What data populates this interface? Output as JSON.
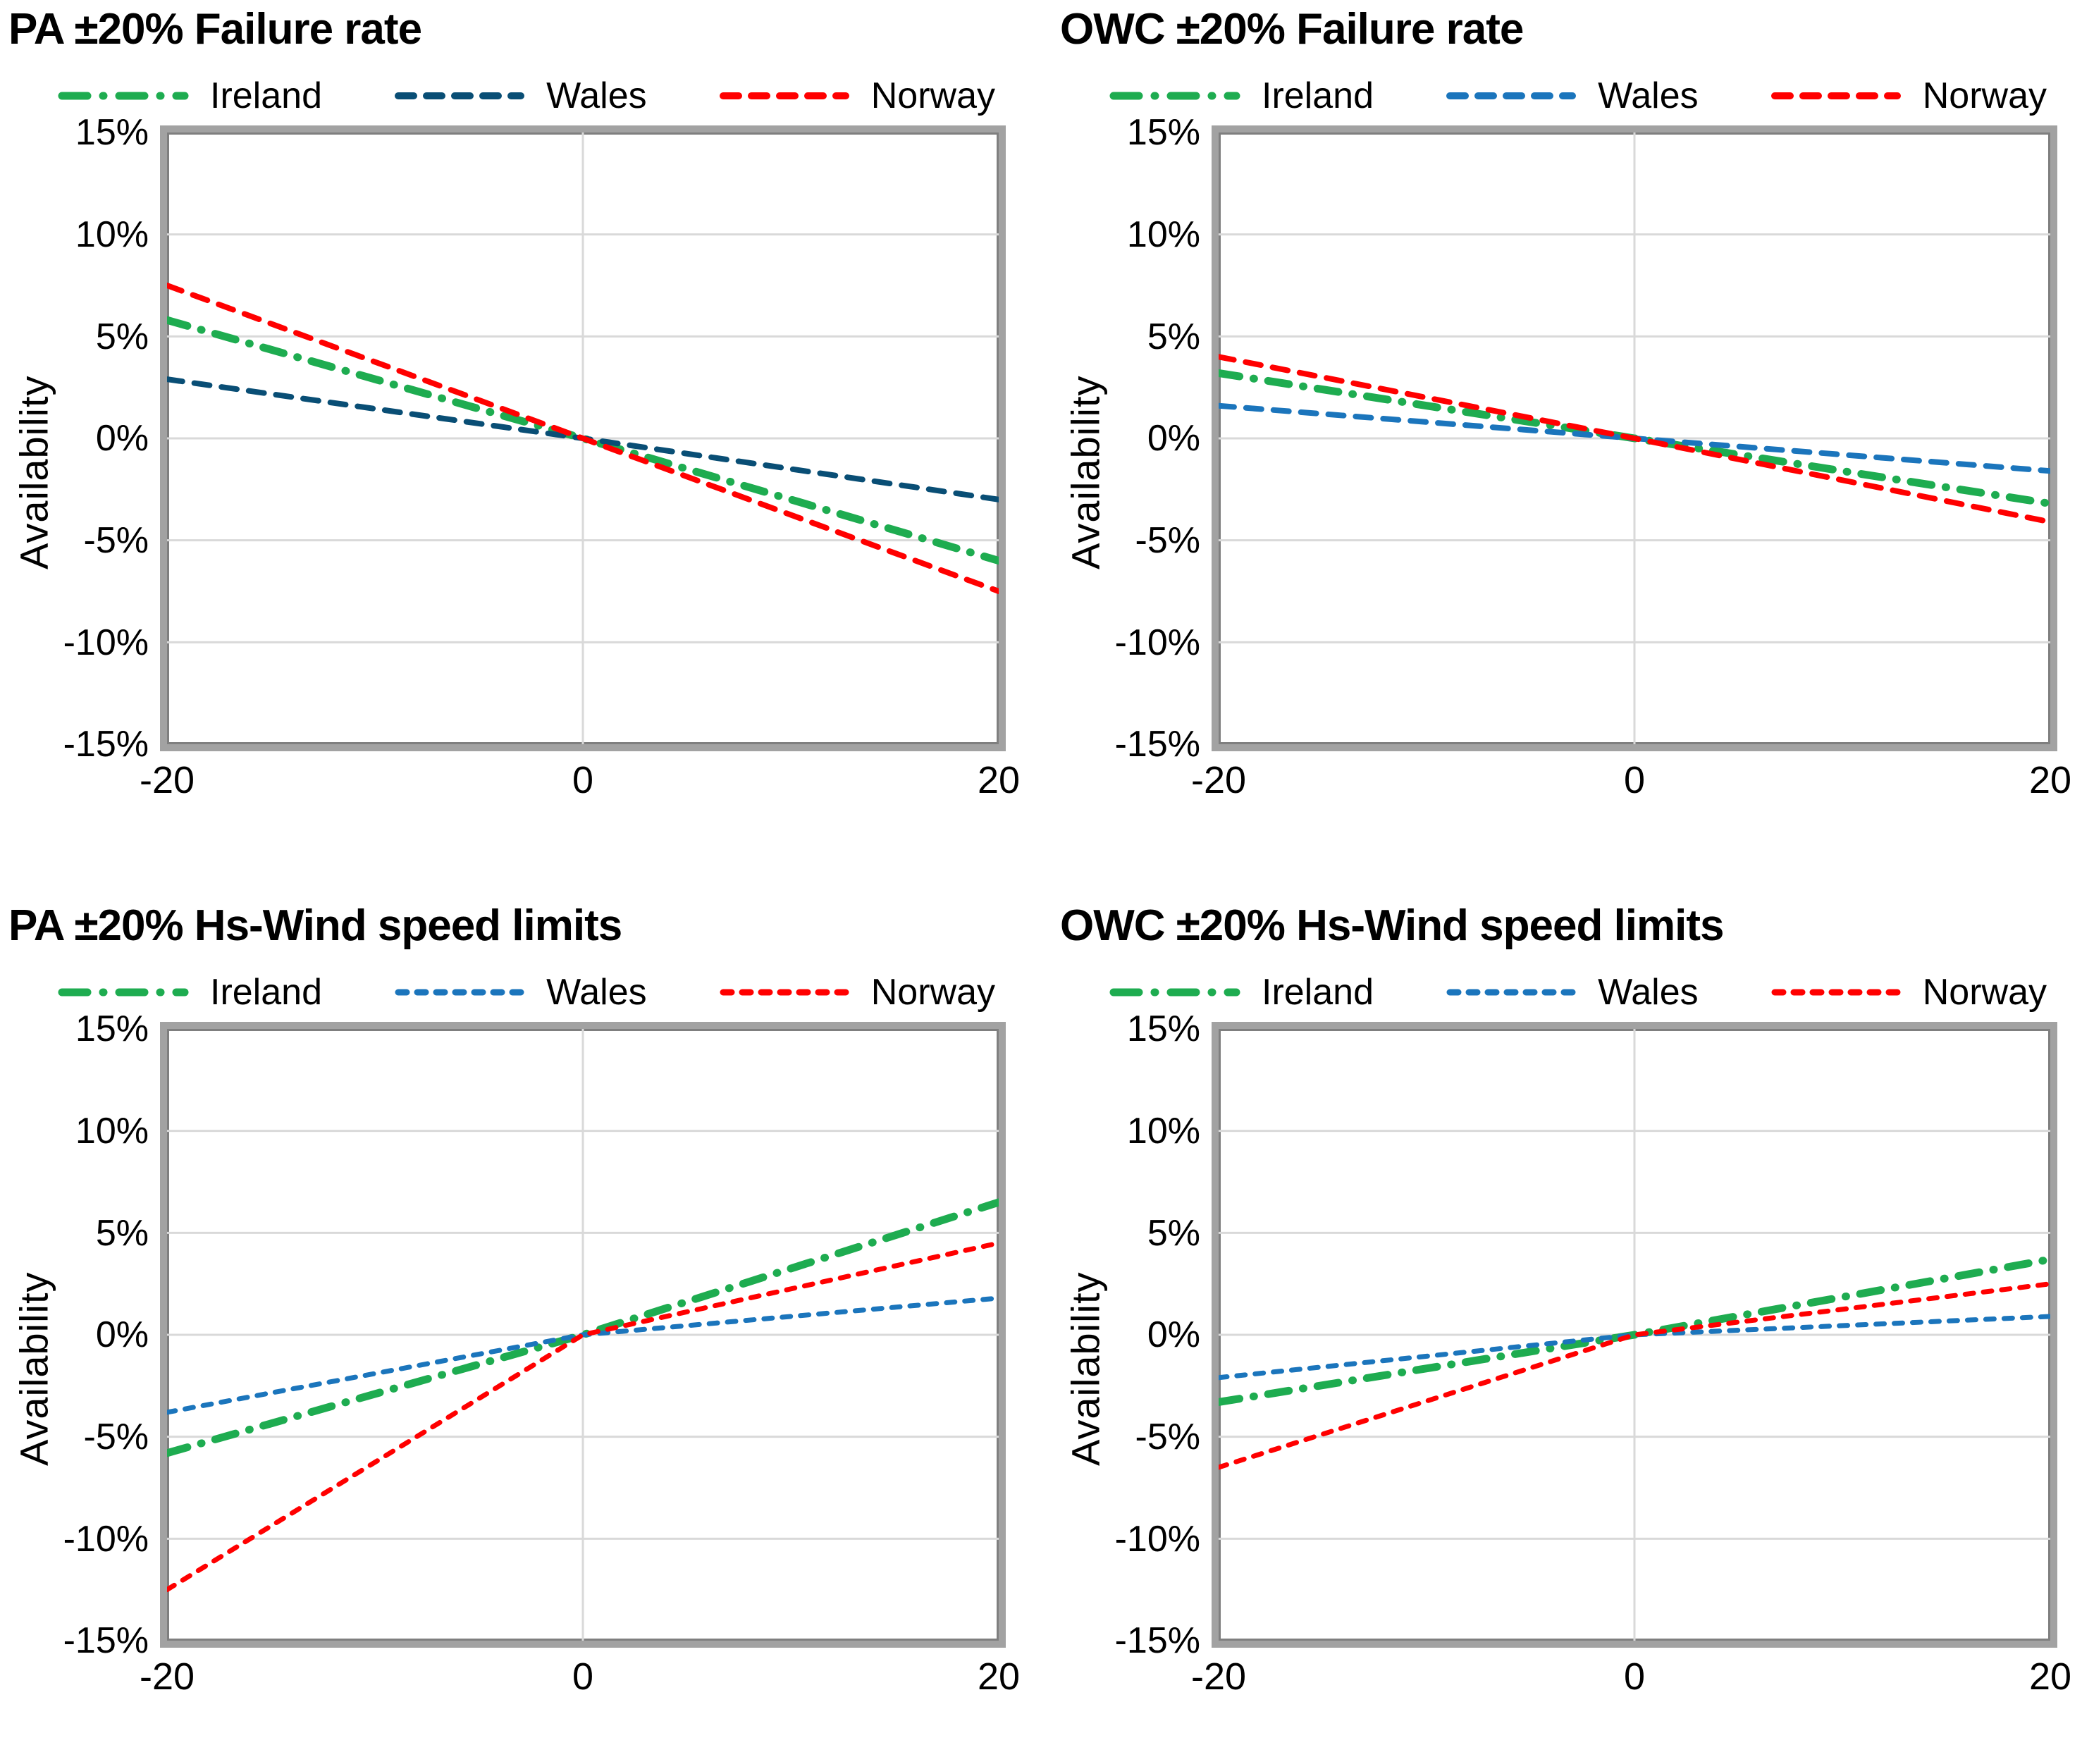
{
  "page": {
    "background": "#ffffff"
  },
  "chart_data": [
    {
      "type": "line",
      "title": "PA ±20% Failure rate",
      "ylabel": "Availability",
      "xlim": [
        -20,
        20
      ],
      "ylim": [
        -15,
        15
      ],
      "grid": true,
      "legend_position": "top",
      "x": [
        -20,
        0,
        20
      ],
      "x_ticks": [
        "-20",
        "0",
        "20"
      ],
      "y_ticks": [
        "15%",
        "10%",
        "5%",
        "0%",
        "-5%",
        "-10%",
        "-15%"
      ],
      "series": [
        {
          "name": "Ireland",
          "color": "#1EAC50",
          "style": "dashdot",
          "values": [
            5.8,
            0,
            -6.0
          ]
        },
        {
          "name": "Wales",
          "color": "#094E75",
          "style": "dash",
          "values": [
            2.9,
            0,
            -3.0
          ]
        },
        {
          "name": "Norway",
          "color": "#FF0000",
          "style": "dash",
          "values": [
            7.5,
            0,
            -7.5
          ]
        }
      ]
    },
    {
      "type": "line",
      "title": "OWC ±20% Failure rate",
      "ylabel": "Availability",
      "xlim": [
        -20,
        20
      ],
      "ylim": [
        -15,
        15
      ],
      "grid": true,
      "legend_position": "top",
      "x": [
        -20,
        0,
        20
      ],
      "x_ticks": [
        "-20",
        "0",
        "20"
      ],
      "y_ticks": [
        "15%",
        "10%",
        "5%",
        "0%",
        "-5%",
        "-10%",
        "-15%"
      ],
      "series": [
        {
          "name": "Ireland",
          "color": "#1EAC50",
          "style": "dashdot",
          "values": [
            3.2,
            0,
            -3.2
          ]
        },
        {
          "name": "Wales",
          "color": "#1B75BC",
          "style": "dash",
          "values": [
            1.6,
            0,
            -1.6
          ]
        },
        {
          "name": "Norway",
          "color": "#FF0000",
          "style": "dash",
          "values": [
            4.0,
            0,
            -4.1
          ]
        }
      ]
    },
    {
      "type": "line",
      "title": "PA ±20% Hs-Wind speed limits",
      "ylabel": "Availability",
      "xlim": [
        -20,
        20
      ],
      "ylim": [
        -15,
        15
      ],
      "grid": true,
      "legend_position": "top",
      "x": [
        -20,
        0,
        20
      ],
      "x_ticks": [
        "-20",
        "0",
        "20"
      ],
      "y_ticks": [
        "15%",
        "10%",
        "5%",
        "0%",
        "-5%",
        "-10%",
        "-15%"
      ],
      "series": [
        {
          "name": "Ireland",
          "color": "#1EAC50",
          "style": "dashdot",
          "values": [
            -5.8,
            0,
            6.5
          ]
        },
        {
          "name": "Wales",
          "color": "#1B75BC",
          "style": "smalldash",
          "values": [
            -3.8,
            0,
            1.8
          ]
        },
        {
          "name": "Norway",
          "color": "#FF0000",
          "style": "smalldash",
          "values": [
            -12.5,
            0,
            4.5
          ]
        }
      ]
    },
    {
      "type": "line",
      "title": "OWC ±20% Hs-Wind speed limits",
      "ylabel": "Availability",
      "xlim": [
        -20,
        20
      ],
      "ylim": [
        -15,
        15
      ],
      "grid": true,
      "legend_position": "top",
      "x": [
        -20,
        0,
        20
      ],
      "x_ticks": [
        "-20",
        "0",
        "20"
      ],
      "y_ticks": [
        "15%",
        "10%",
        "5%",
        "0%",
        "-5%",
        "-10%",
        "-15%"
      ],
      "series": [
        {
          "name": "Ireland",
          "color": "#1EAC50",
          "style": "dashdot",
          "values": [
            -3.3,
            0,
            3.7
          ]
        },
        {
          "name": "Wales",
          "color": "#1B75BC",
          "style": "smalldash",
          "values": [
            -2.1,
            0,
            0.9
          ]
        },
        {
          "name": "Norway",
          "color": "#FF0000",
          "style": "smalldash",
          "values": [
            -6.5,
            0,
            2.5
          ]
        }
      ]
    }
  ],
  "style": {
    "gridline_color": "#D9D9D9",
    "frame_color": "#A2A2A2",
    "frame_inner_color": "#7F7F7F"
  }
}
